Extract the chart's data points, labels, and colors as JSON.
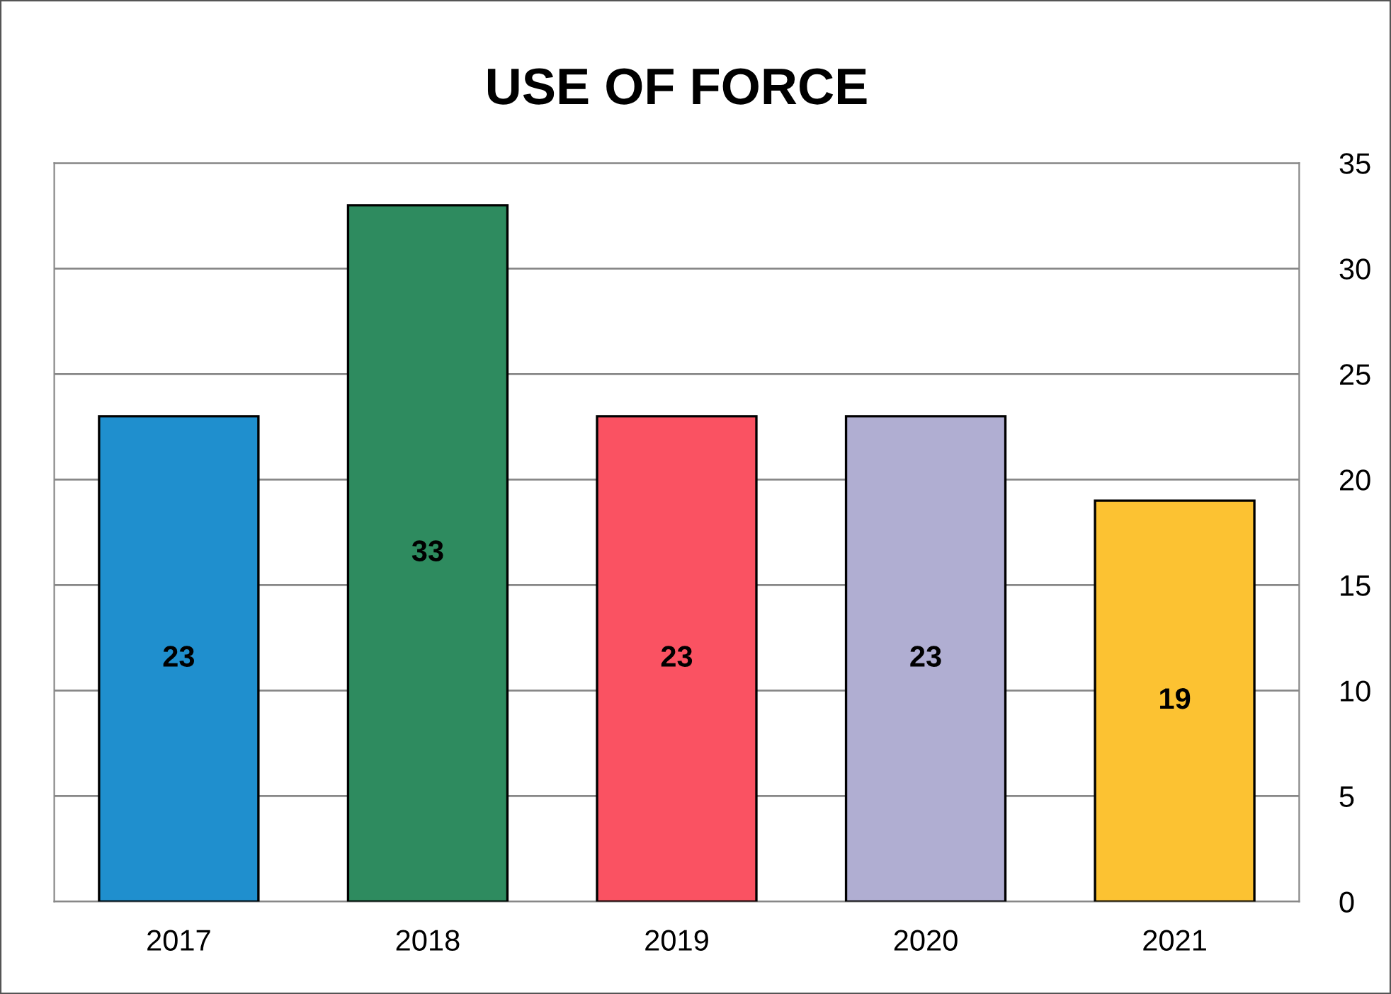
{
  "chart_data": {
    "type": "bar",
    "title": "USE OF FORCE",
    "categories": [
      "2017",
      "2018",
      "2019",
      "2020",
      "2021"
    ],
    "values": [
      23,
      33,
      23,
      23,
      19
    ],
    "colors": [
      "#1f8fce",
      "#2e8b5f",
      "#fa5262",
      "#b0aed2",
      "#fcc232"
    ],
    "ylim": [
      0,
      35
    ],
    "yticks": [
      0,
      5,
      10,
      15,
      20,
      25,
      30,
      35
    ],
    "grid": "y",
    "data_labels": true
  }
}
